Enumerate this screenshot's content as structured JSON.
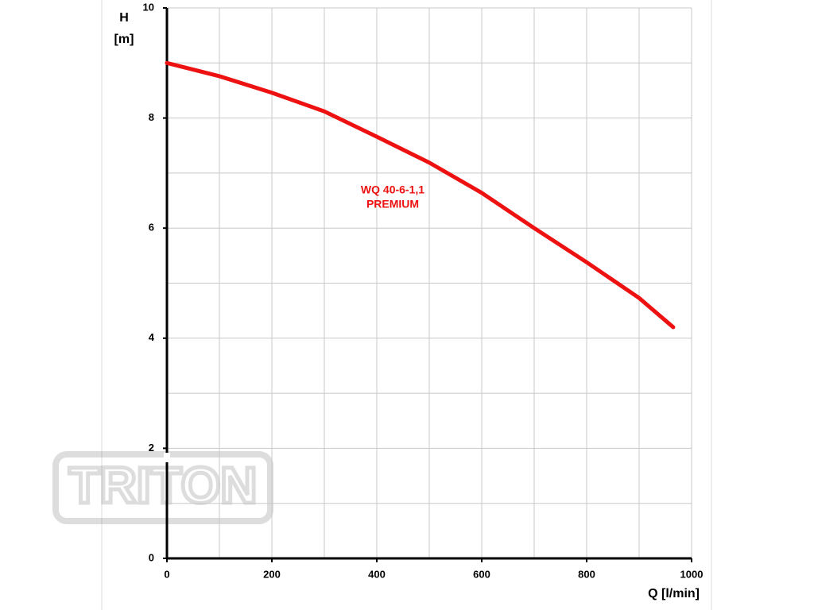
{
  "chart_data": {
    "type": "line",
    "watermark": "TRITON",
    "ylabel": [
      "H",
      "[m]"
    ],
    "xlabel": "Q [l/min]",
    "annotation": [
      "WQ 40-6-1,1",
      "PREMIUM"
    ],
    "x": [
      0,
      100,
      200,
      300,
      400,
      500,
      600,
      700,
      800,
      900,
      965
    ],
    "series": [
      {
        "color": "#ee1111",
        "values": [
          9.0,
          8.76,
          8.46,
          8.12,
          7.66,
          7.19,
          6.64,
          6.0,
          5.38,
          4.73,
          4.2
        ]
      }
    ],
    "xlim": [
      0,
      1000
    ],
    "ylim": [
      0,
      10
    ],
    "xticks": [
      0,
      200,
      400,
      600,
      800,
      1000
    ],
    "yticks": [
      0,
      2,
      4,
      6,
      8,
      10
    ],
    "xgrid": [
      100,
      200,
      300,
      400,
      500,
      600,
      700,
      800,
      900,
      1000
    ],
    "ygrid": [
      1,
      2,
      3,
      4,
      5,
      6,
      7,
      8,
      9,
      10
    ],
    "grid": true
  }
}
